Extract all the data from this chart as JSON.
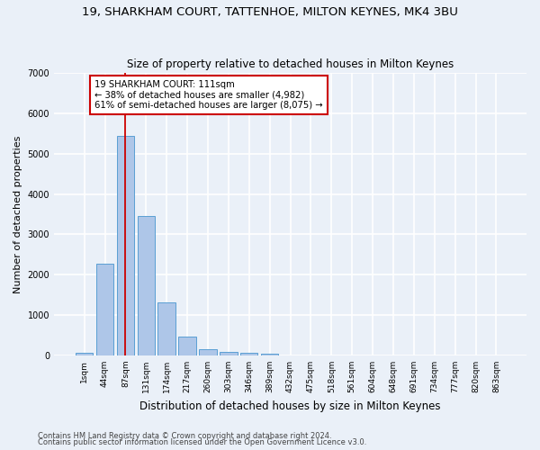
{
  "title1": "19, SHARKHAM COURT, TATTENHOE, MILTON KEYNES, MK4 3BU",
  "title2": "Size of property relative to detached houses in Milton Keynes",
  "xlabel": "Distribution of detached houses by size in Milton Keynes",
  "ylabel": "Number of detached properties",
  "footnote1": "Contains HM Land Registry data © Crown copyright and database right 2024.",
  "footnote2": "Contains public sector information licensed under the Open Government Licence v3.0.",
  "bar_labels": [
    "1sqm",
    "44sqm",
    "87sqm",
    "131sqm",
    "174sqm",
    "217sqm",
    "260sqm",
    "303sqm",
    "346sqm",
    "389sqm",
    "432sqm",
    "475sqm",
    "518sqm",
    "561sqm",
    "604sqm",
    "648sqm",
    "691sqm",
    "734sqm",
    "777sqm",
    "820sqm",
    "863sqm"
  ],
  "bar_values": [
    70,
    2280,
    5450,
    3450,
    1320,
    470,
    155,
    85,
    60,
    40,
    5,
    3,
    2,
    1,
    1,
    0,
    0,
    0,
    0,
    0,
    0
  ],
  "bar_color": "#aec6e8",
  "bar_edge_color": "#5a9fd4",
  "vline_x": 2.0,
  "vline_color": "#cc0000",
  "annotation_text": "19 SHARKHAM COURT: 111sqm\n← 38% of detached houses are smaller (4,982)\n61% of semi-detached houses are larger (8,075) →",
  "annotation_box_color": "#ffffff",
  "annotation_box_edge": "#cc0000",
  "ylim": [
    0,
    7000
  ],
  "bg_color": "#eaf0f8",
  "grid_color": "#ffffff",
  "title1_fontsize": 9.5,
  "title2_fontsize": 8.5,
  "xlabel_fontsize": 8.5,
  "ylabel_fontsize": 8.0,
  "annot_fontsize": 7.2,
  "tick_fontsize": 6.5,
  "ytick_fontsize": 7.0,
  "footnote_fontsize": 6.0
}
